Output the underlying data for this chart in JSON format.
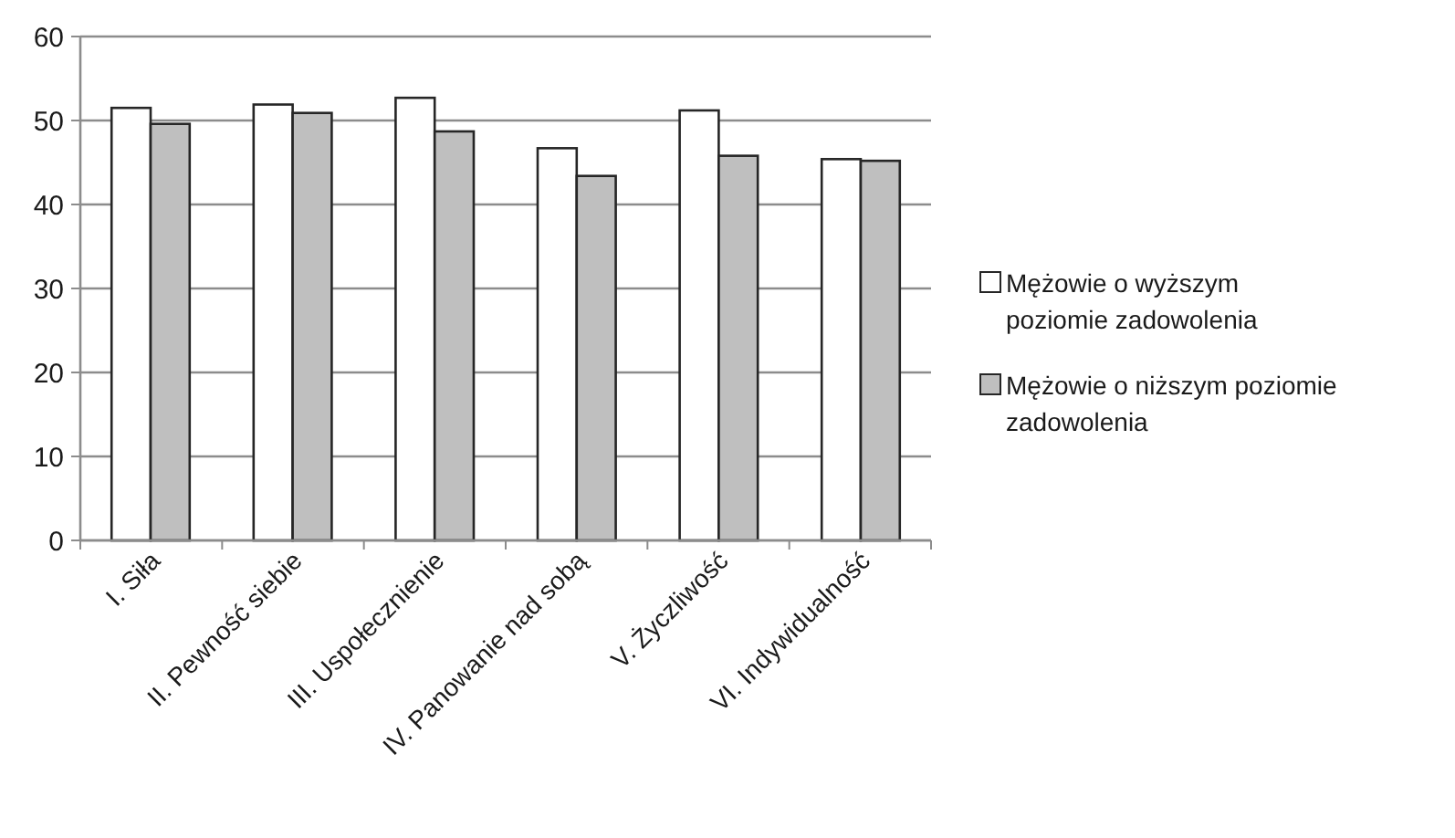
{
  "chart_data": {
    "type": "bar",
    "categories": [
      "I. Siła",
      "II. Pewność siebie",
      "III. Uspołecznienie",
      "IV. Panowanie nad sobą",
      "V. Życzliwość",
      "VI. Indywidualność"
    ],
    "series": [
      {
        "name": "Mężowie o wyższym poziomie zadowolenia",
        "color": "#ffffff",
        "values": [
          51.5,
          51.9,
          52.7,
          46.7,
          51.2,
          45.4
        ]
      },
      {
        "name": "Mężowie o niższym poziomie zadowolenia",
        "color": "#bfbfbf",
        "values": [
          49.6,
          50.9,
          48.7,
          43.4,
          45.8,
          45.2
        ]
      }
    ],
    "ylim": [
      0,
      60
    ],
    "yticks": [
      0,
      10,
      20,
      30,
      40,
      50,
      60
    ],
    "grid": "y",
    "legend": "right"
  }
}
